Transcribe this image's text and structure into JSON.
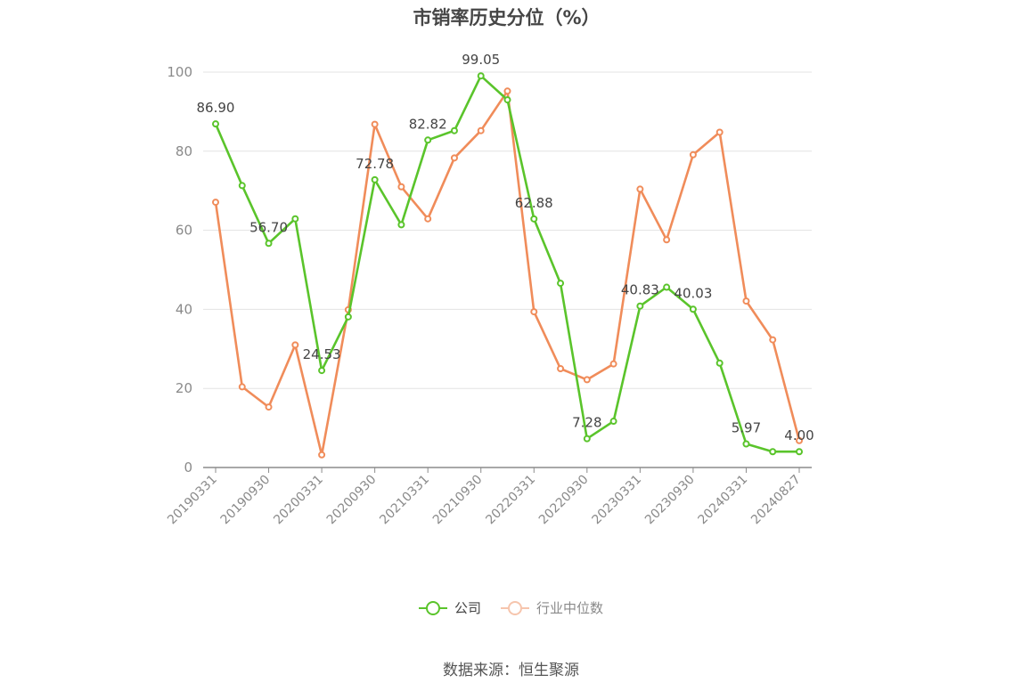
{
  "chart_data": {
    "type": "line",
    "title": "市销率历史分位（%）",
    "x": [
      "20190331",
      "20190630",
      "20190930",
      "20191231",
      "20200331",
      "20200630",
      "20200930",
      "20201231",
      "20210331",
      "20210630",
      "20210930",
      "20211231",
      "20220331",
      "20220630",
      "20220930",
      "20221231",
      "20230331",
      "20230630",
      "20230930",
      "20231231",
      "20240331",
      "20240630",
      "20240827"
    ],
    "x_tick_labels": [
      "20190331",
      "20190930",
      "20200331",
      "20200930",
      "20210331",
      "20210930",
      "20220331",
      "20220930",
      "20230331",
      "20230930",
      "20240331",
      "20240827"
    ],
    "ylim": [
      0,
      100
    ],
    "y_ticks": [
      "0",
      "20",
      "40",
      "60",
      "80",
      "100"
    ],
    "grid": true,
    "legend_position": "bottom",
    "series": [
      {
        "name": "公司",
        "color": "#5ac42b",
        "values": [
          86.9,
          71.3,
          56.7,
          62.9,
          24.53,
          38.1,
          72.78,
          61.4,
          82.82,
          85.2,
          99.05,
          93.0,
          62.88,
          46.6,
          7.28,
          11.7,
          40.83,
          45.6,
          40.03,
          26.4,
          5.97,
          4.0,
          4.0
        ],
        "labels": [
          "86.90",
          "",
          "56.70",
          "",
          "24.53",
          "",
          "72.78",
          "",
          "82.82",
          "",
          "99.05",
          "",
          "62.88",
          "",
          "7.28",
          "",
          "40.83",
          "",
          "40.03",
          "",
          "5.97",
          "",
          "4.00"
        ]
      },
      {
        "name": "行业中位数",
        "color": "#f08c5a",
        "values": [
          67.1,
          20.4,
          15.3,
          31.0,
          3.2,
          39.9,
          86.8,
          71.0,
          62.9,
          78.3,
          85.2,
          95.2,
          39.4,
          25.0,
          22.2,
          26.2,
          70.4,
          57.6,
          79.1,
          84.8,
          42.1,
          32.3,
          6.8
        ]
      }
    ]
  },
  "source_text": "数据来源：恒生聚源"
}
